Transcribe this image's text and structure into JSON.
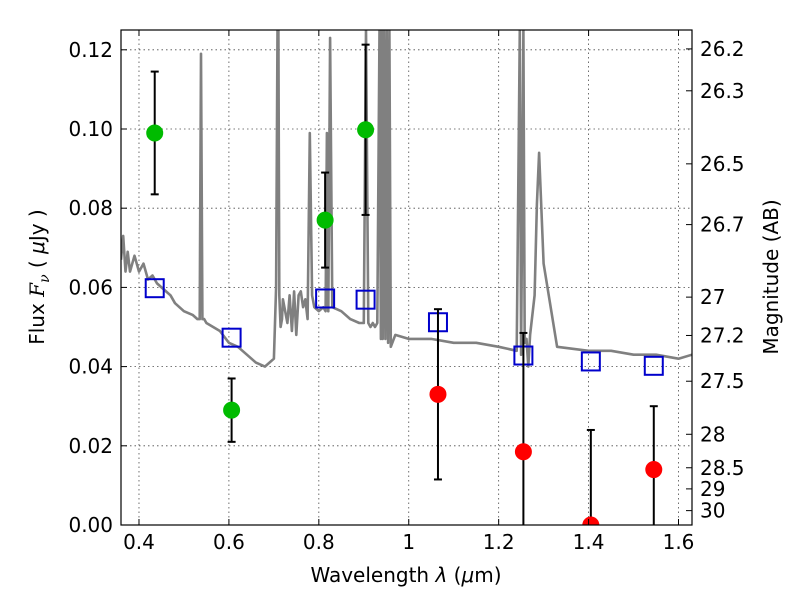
{
  "chart_data": {
    "type": "scatter",
    "xlabel": "Wavelength  λ (μm)",
    "ylabel": "Flux  F_ν  ( μJy )",
    "y2label": "Magnitude (AB)",
    "xlim": [
      0.36,
      1.63
    ],
    "ylim": [
      0.0,
      0.125
    ],
    "grid": true,
    "x_ticks": [
      0.4,
      0.6,
      0.8,
      1.0,
      1.2,
      1.4,
      1.6
    ],
    "x_tick_labels": [
      "0.4",
      "0.6",
      "0.8",
      "1",
      "1.2",
      "1.4",
      "1.6"
    ],
    "y_ticks": [
      0.0,
      0.02,
      0.04,
      0.06,
      0.08,
      0.1,
      0.12
    ],
    "y_tick_labels": [
      "0.00",
      "0.02",
      "0.04",
      "0.06",
      "0.08",
      "0.10",
      "0.12"
    ],
    "mag_ticks": [
      "26.2",
      "26.3",
      "26.5",
      "26.7",
      "27",
      "27.2",
      "27.5",
      "28",
      "28.5",
      "29",
      "30"
    ],
    "colors": {
      "detection": "#00bb00",
      "upper_limit": "#ff0000",
      "model_photometry": "#0000cc",
      "model_spectrum": "#808080",
      "errorbar": "#000000"
    },
    "series": [
      {
        "marker": "circle",
        "color": "#00bb00",
        "points": [
          {
            "x": 0.435,
            "y": 0.099,
            "err": 0.0155
          },
          {
            "x": 0.606,
            "y": 0.029,
            "err": 0.008
          },
          {
            "x": 0.814,
            "y": 0.077,
            "err": 0.012
          },
          {
            "x": 0.904,
            "y": 0.0998,
            "err": 0.0215
          }
        ]
      },
      {
        "marker": "circle",
        "color": "#ff0000",
        "points": [
          {
            "x": 1.065,
            "y": 0.033,
            "err": 0.0215
          },
          {
            "x": 1.255,
            "y": 0.0185,
            "err": 0.03
          },
          {
            "x": 1.405,
            "y": 0.0,
            "err": 0.024
          },
          {
            "x": 1.545,
            "y": 0.014,
            "err": 0.016
          }
        ]
      },
      {
        "marker": "open-square",
        "color": "#0000cc",
        "points": [
          {
            "x": 0.435,
            "y": 0.0598
          },
          {
            "x": 0.606,
            "y": 0.0473
          },
          {
            "x": 0.814,
            "y": 0.0572
          },
          {
            "x": 0.904,
            "y": 0.0569
          },
          {
            "x": 1.065,
            "y": 0.0512
          },
          {
            "x": 1.255,
            "y": 0.0428
          },
          {
            "x": 1.405,
            "y": 0.0413
          },
          {
            "x": 1.545,
            "y": 0.0402
          }
        ]
      },
      {
        "marker": "line",
        "color": "#808080",
        "x": [
          0.36,
          0.365,
          0.37,
          0.375,
          0.38,
          0.39,
          0.4,
          0.41,
          0.42,
          0.43,
          0.44,
          0.45,
          0.46,
          0.47,
          0.48,
          0.5,
          0.52,
          0.53,
          0.535,
          0.538,
          0.541,
          0.545,
          0.55,
          0.58,
          0.6,
          0.62,
          0.64,
          0.66,
          0.68,
          0.7,
          0.705,
          0.708,
          0.71,
          0.712,
          0.715,
          0.718,
          0.72,
          0.73,
          0.735,
          0.74,
          0.745,
          0.75,
          0.755,
          0.76,
          0.765,
          0.77,
          0.775,
          0.78,
          0.785,
          0.79,
          0.8,
          0.81,
          0.815,
          0.818,
          0.821,
          0.825,
          0.83,
          0.85,
          0.87,
          0.89,
          0.9,
          0.905,
          0.91,
          0.915,
          0.92,
          0.925,
          0.93,
          0.935,
          0.938,
          0.94,
          0.942,
          0.945,
          0.948,
          0.951,
          0.954,
          0.957,
          0.96,
          0.97,
          1.0,
          1.05,
          1.1,
          1.15,
          1.2,
          1.24,
          1.247,
          1.25,
          1.255,
          1.258,
          1.262,
          1.266,
          1.27,
          1.28,
          1.285,
          1.29,
          1.3,
          1.33,
          1.4,
          1.45,
          1.5,
          1.55,
          1.6,
          1.63
        ],
        "y": [
          0.067,
          0.073,
          0.064,
          0.069,
          0.064,
          0.068,
          0.064,
          0.066,
          0.062,
          0.063,
          0.061,
          0.06,
          0.059,
          0.058,
          0.056,
          0.054,
          0.053,
          0.052,
          0.052,
          0.119,
          0.052,
          0.052,
          0.051,
          0.049,
          0.046,
          0.045,
          0.043,
          0.041,
          0.04,
          0.042,
          0.06,
          0.125,
          0.125,
          0.058,
          0.05,
          0.052,
          0.057,
          0.051,
          0.058,
          0.049,
          0.059,
          0.048,
          0.058,
          0.059,
          0.055,
          0.057,
          0.052,
          0.099,
          0.058,
          0.055,
          0.054,
          0.055,
          0.054,
          0.099,
          0.054,
          0.123,
          0.055,
          0.054,
          0.052,
          0.051,
          0.051,
          0.125,
          0.051,
          0.05,
          0.051,
          0.05,
          0.051,
          0.125,
          0.047,
          0.125,
          0.047,
          0.125,
          0.047,
          0.125,
          0.046,
          0.125,
          0.045,
          0.048,
          0.047,
          0.047,
          0.046,
          0.046,
          0.045,
          0.044,
          0.125,
          0.043,
          0.125,
          0.046,
          0.047,
          0.04,
          0.048,
          0.058,
          0.081,
          0.094,
          0.066,
          0.045,
          0.044,
          0.044,
          0.043,
          0.043,
          0.042,
          0.043
        ]
      }
    ]
  }
}
